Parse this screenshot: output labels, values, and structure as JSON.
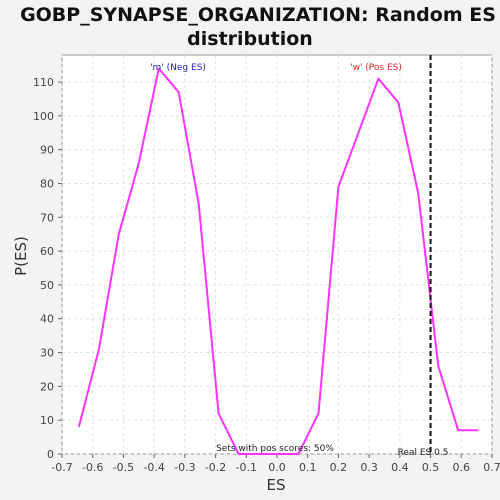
{
  "chart_data": {
    "type": "line",
    "title_line1": "GOBP_SYNAPSE_ORGANIZATION: Random ES",
    "title_line2": "distribution",
    "xlabel": "ES",
    "ylabel": "P(ES)",
    "xlim": [
      -0.7,
      0.7
    ],
    "ylim": [
      0,
      118
    ],
    "x_ticks": [
      "-0.7",
      "-0.6",
      "-0.5",
      "-0.4",
      "-0.3",
      "-0.2",
      "-0.1",
      "0.0",
      "0.1",
      "0.2",
      "0.3",
      "0.4",
      "0.5",
      "0.6",
      "0.7"
    ],
    "x_tick_values": [
      -0.7,
      -0.6,
      -0.5,
      -0.4,
      -0.3,
      -0.2,
      -0.1,
      0.0,
      0.1,
      0.2,
      0.3,
      0.4,
      0.5,
      0.6,
      0.7
    ],
    "y_ticks": [
      "0",
      "10",
      "20",
      "30",
      "40",
      "50",
      "60",
      "70",
      "80",
      "90",
      "100",
      "110"
    ],
    "y_tick_values": [
      0,
      10,
      20,
      30,
      40,
      50,
      60,
      70,
      80,
      90,
      100,
      110
    ],
    "grid": true,
    "series": [
      {
        "color": "#ff33ff",
        "x": [
          -0.645,
          -0.58,
          -0.515,
          -0.45,
          -0.385,
          -0.32,
          -0.255,
          -0.19,
          -0.125,
          -0.06,
          0.005,
          0.07,
          0.135,
          0.2,
          0.265,
          0.33,
          0.395,
          0.46,
          0.525,
          0.59,
          0.655
        ],
        "y": [
          8,
          31,
          65,
          86,
          114,
          107,
          74,
          12,
          0,
          0,
          0,
          0,
          12,
          79,
          95,
          111,
          104,
          77,
          26,
          7,
          7
        ]
      }
    ],
    "annotations": {
      "neg_label": "'m' (Neg ES)",
      "neg_color": "#2222bb",
      "pos_label": "'w' (Pos ES)",
      "pos_color": "#dd2222",
      "sets_label": "Sets with pos scores: 50%",
      "real_es_label": "Real ES 0.5",
      "real_es_value": 0.5
    }
  }
}
